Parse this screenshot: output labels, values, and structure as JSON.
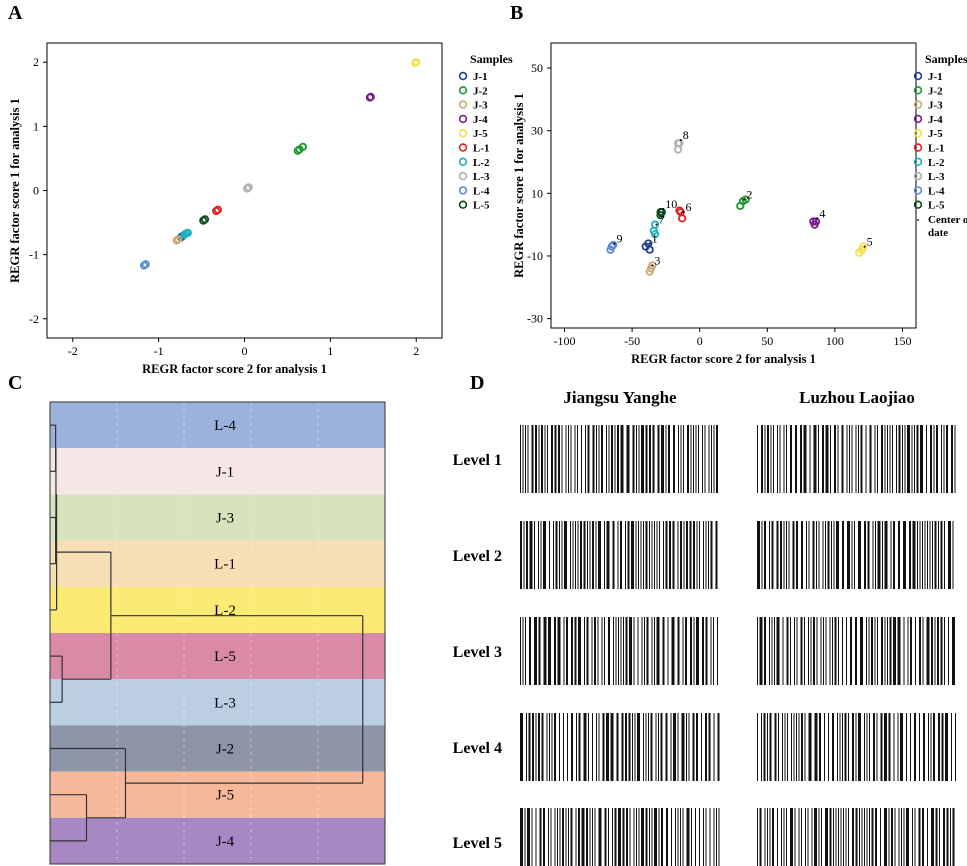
{
  "panel_letters": {
    "a": "A",
    "b": "B",
    "c": "C",
    "d": "D"
  },
  "legend_common": {
    "title": "Samples",
    "items": [
      {
        "label": "J-1",
        "color": "#1f3f9a"
      },
      {
        "label": "J-2",
        "color": "#1a9a2e"
      },
      {
        "label": "J-3",
        "color": "#c8a878"
      },
      {
        "label": "J-4",
        "color": "#7a1a8a"
      },
      {
        "label": "J-5",
        "color": "#f4e040"
      },
      {
        "label": "L-1",
        "color": "#e02020"
      },
      {
        "label": "L-2",
        "color": "#18b0c0"
      },
      {
        "label": "L-3",
        "color": "#b0b0b0"
      },
      {
        "label": "L-4",
        "color": "#5a8ad0"
      },
      {
        "label": "L-5",
        "color": "#0a4a1a"
      }
    ]
  },
  "legend_b_extra": {
    "label": "Center of date"
  },
  "chart_data": [
    {
      "id": "A",
      "type": "scatter",
      "xlabel": "REGR factor score   2 for analysis 1",
      "ylabel": "REGR factor score   1 for analysis 1",
      "xlim": [
        -2.3,
        2.3
      ],
      "ylim": [
        -2.3,
        2.3
      ],
      "xticks": [
        -2,
        -1,
        0,
        1,
        2
      ],
      "yticks": [
        -2,
        -1,
        0,
        1,
        2
      ],
      "series": [
        {
          "name": "J-1",
          "points": [
            [
              -0.74,
              -0.73
            ],
            [
              -0.72,
              -0.71
            ]
          ]
        },
        {
          "name": "J-2",
          "points": [
            [
              0.62,
              0.62
            ],
            [
              0.64,
              0.64
            ],
            [
              0.68,
              0.68
            ]
          ]
        },
        {
          "name": "J-3",
          "points": [
            [
              -0.79,
              -0.78
            ],
            [
              -0.77,
              -0.76
            ]
          ]
        },
        {
          "name": "J-4",
          "points": [
            [
              1.46,
              1.45
            ],
            [
              1.47,
              1.46
            ]
          ]
        },
        {
          "name": "J-5",
          "points": [
            [
              1.99,
              1.99
            ],
            [
              2.0,
              2.0
            ]
          ]
        },
        {
          "name": "L-1",
          "points": [
            [
              -0.33,
              -0.32
            ],
            [
              -0.31,
              -0.3
            ]
          ]
        },
        {
          "name": "L-2",
          "points": [
            [
              -0.7,
              -0.69
            ],
            [
              -0.68,
              -0.67
            ],
            [
              -0.66,
              -0.66
            ]
          ]
        },
        {
          "name": "L-3",
          "points": [
            [
              0.03,
              0.03
            ],
            [
              0.05,
              0.05
            ]
          ]
        },
        {
          "name": "L-4",
          "points": [
            [
              -1.17,
              -1.17
            ],
            [
              -1.15,
              -1.15
            ]
          ]
        },
        {
          "name": "L-5",
          "points": [
            [
              -0.48,
              -0.47
            ],
            [
              -0.46,
              -0.45
            ]
          ]
        }
      ]
    },
    {
      "id": "B",
      "type": "scatter",
      "xlabel": "REGR factor score   2 for analysis 1",
      "ylabel": "REGR factor score   1 for analysis 1",
      "xlim": [
        -110,
        160
      ],
      "ylim": [
        -33,
        58
      ],
      "xticks": [
        -100,
        -50,
        0,
        50,
        100,
        150
      ],
      "yticks": [
        -30,
        -10,
        10,
        30,
        50
      ],
      "series": [
        {
          "name": "J-1",
          "points": [
            [
              -40,
              -7
            ],
            [
              -38,
              -6
            ],
            [
              -37,
              -8
            ]
          ]
        },
        {
          "name": "J-2",
          "points": [
            [
              30,
              6
            ],
            [
              32,
              7.5
            ],
            [
              34,
              8
            ]
          ]
        },
        {
          "name": "J-3",
          "points": [
            [
              -37,
              -15
            ],
            [
              -36,
              -14
            ],
            [
              -35,
              -13
            ]
          ]
        },
        {
          "name": "J-4",
          "points": [
            [
              84,
              1
            ],
            [
              85,
              0
            ],
            [
              86,
              1
            ]
          ]
        },
        {
          "name": "J-5",
          "points": [
            [
              118,
              -9
            ],
            [
              120,
              -8
            ],
            [
              121,
              -7
            ]
          ]
        },
        {
          "name": "L-1",
          "points": [
            [
              -14,
              4
            ],
            [
              -13,
              2
            ],
            [
              -15,
              4.5
            ]
          ]
        },
        {
          "name": "L-2",
          "points": [
            [
              -33,
              0
            ],
            [
              -34,
              -2
            ],
            [
              -33,
              -3
            ]
          ]
        },
        {
          "name": "L-3",
          "points": [
            [
              -16,
              24
            ],
            [
              -15,
              26
            ],
            [
              -16,
              26
            ]
          ]
        },
        {
          "name": "L-4",
          "points": [
            [
              -66,
              -8
            ],
            [
              -65,
              -7
            ],
            [
              -64,
              -6.5
            ]
          ]
        },
        {
          "name": "L-5",
          "points": [
            [
              -29,
              3
            ],
            [
              -28,
              4
            ],
            [
              -29,
              4
            ]
          ]
        }
      ],
      "centers": [
        {
          "label": "1",
          "x": -37,
          "y": -6
        },
        {
          "label": "2",
          "x": 33,
          "y": 8
        },
        {
          "label": "3",
          "x": -35,
          "y": -13
        },
        {
          "label": "4",
          "x": 87,
          "y": 2
        },
        {
          "label": "5",
          "x": 122,
          "y": -7
        },
        {
          "label": "6",
          "x": -12,
          "y": 4
        },
        {
          "label": "7",
          "x": -32,
          "y": 0
        },
        {
          "label": "8",
          "x": -14,
          "y": 27
        },
        {
          "label": "9",
          "x": -63,
          "y": -6
        },
        {
          "label": "10",
          "x": -27,
          "y": 5
        }
      ]
    },
    {
      "id": "C",
      "type": "dendrogram",
      "leaves": [
        {
          "label": "L-4",
          "color": "#9bb2dc"
        },
        {
          "label": "J-1",
          "color": "#f6e6e6"
        },
        {
          "label": "J-3",
          "color": "#d6e3bc"
        },
        {
          "label": "L-1",
          "color": "#f7deb4"
        },
        {
          "label": "L-2",
          "color": "#fbea74"
        },
        {
          "label": "L-5",
          "color": "#d88aa6"
        },
        {
          "label": "L-3",
          "color": "#bccfe2"
        },
        {
          "label": "J-2",
          "color": "#8c96a8"
        },
        {
          "label": "J-5",
          "color": "#f6b89a"
        },
        {
          "label": "J-4",
          "color": "#a888c4"
        }
      ],
      "merges": [
        {
          "a": 0,
          "b": 1,
          "height": 0.5
        },
        {
          "a": 2,
          "b": 3,
          "height": 0.5
        },
        {
          "a": "m0",
          "b": "m1",
          "height": 0.6
        },
        {
          "a": "m2",
          "b": 4,
          "height": 0.8
        },
        {
          "a": 5,
          "b": 6,
          "height": 2.5
        },
        {
          "a": "m3",
          "b": "m4",
          "height": 17.5
        },
        {
          "a": 8,
          "b": 9,
          "height": 10
        },
        {
          "a": 7,
          "b": "m6",
          "height": 22
        },
        {
          "a": "m5",
          "b": "m7",
          "height": 95
        }
      ],
      "max_height": 100
    },
    {
      "id": "D",
      "type": "barcode",
      "columns": [
        "Jiangsu Yanghe",
        "Luzhou Laojiao"
      ],
      "rows": [
        "Level 1",
        "Level 2",
        "Level 3",
        "Level 4",
        "Level 5"
      ]
    }
  ]
}
